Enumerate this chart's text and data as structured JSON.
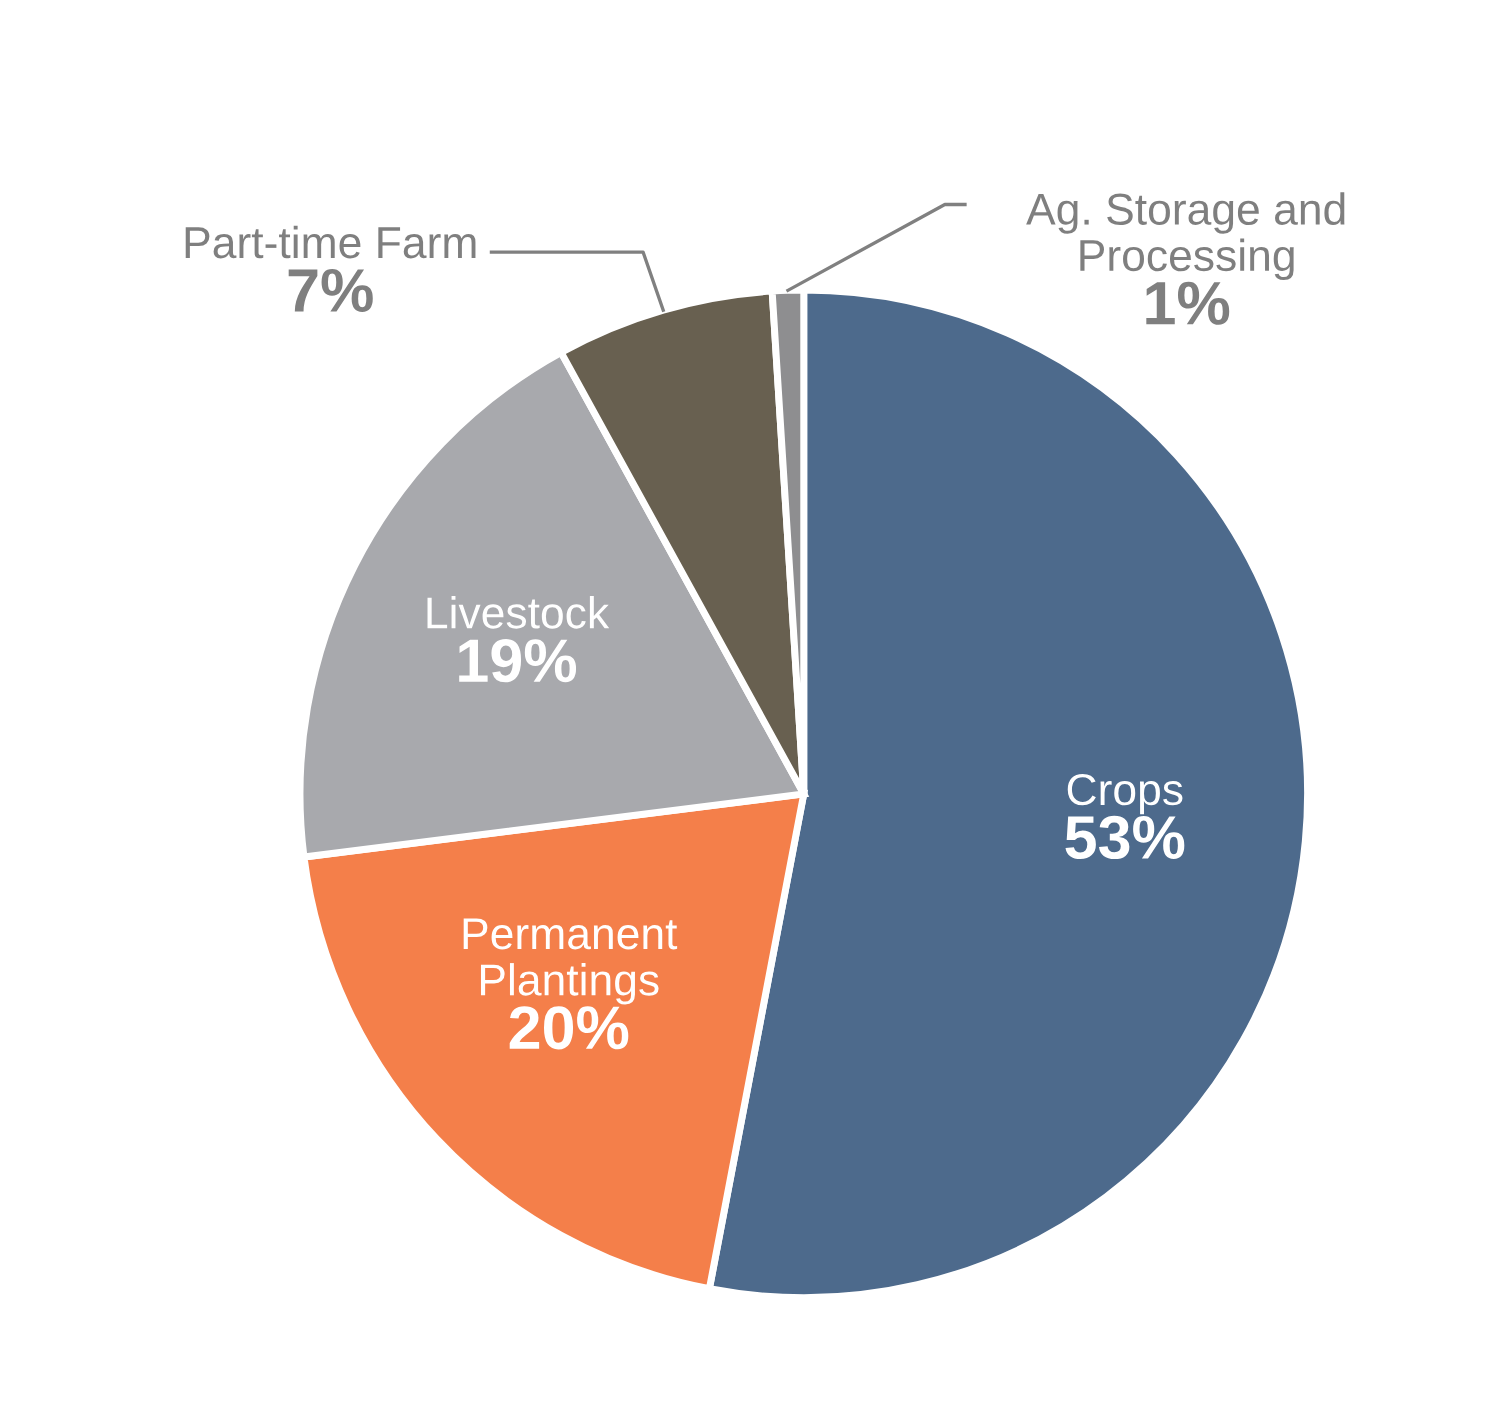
{
  "chart_data": {
    "type": "pie",
    "categories": [
      "Crops",
      "Permanent\nPlantings",
      "Livestock",
      "Part-time Farm",
      "Ag. Storage and\nProcessing"
    ],
    "values": [
      53,
      20,
      19,
      7,
      1
    ],
    "colors": [
      "#4d6a8c",
      "#f47f4a",
      "#a8a9ad",
      "#686050",
      "#8e8e90"
    ],
    "value_labels": [
      "53%",
      "20%",
      "19%",
      "7%",
      "1%"
    ]
  }
}
